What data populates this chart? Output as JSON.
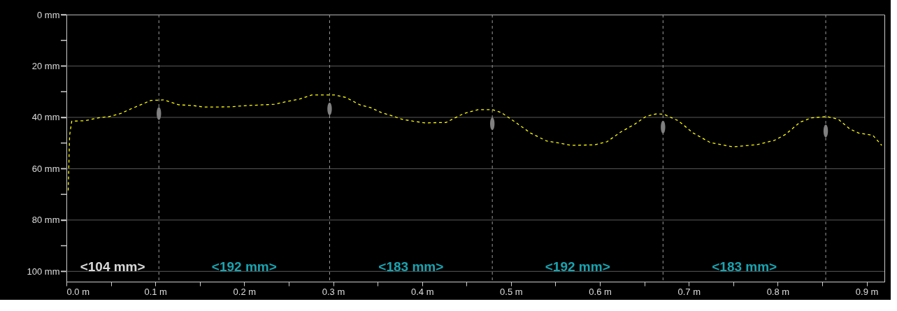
{
  "chart_data": {
    "type": "line",
    "xlim": [
      0,
      0.92
    ],
    "ylim": [
      104,
      0
    ],
    "xticks": [
      {
        "value": 0,
        "label": "0.0 m"
      },
      {
        "value": 0.05,
        "label": null
      },
      {
        "value": 0.1,
        "label": "0.1 m"
      },
      {
        "value": 0.15,
        "label": null
      },
      {
        "value": 0.2,
        "label": "0.2 m"
      },
      {
        "value": 0.25,
        "label": null
      },
      {
        "value": 0.3,
        "label": "0.3 m"
      },
      {
        "value": 0.35,
        "label": null
      },
      {
        "value": 0.4,
        "label": "0.4 m"
      },
      {
        "value": 0.45,
        "label": null
      },
      {
        "value": 0.5,
        "label": "0.5 m"
      },
      {
        "value": 0.55,
        "label": null
      },
      {
        "value": 0.6,
        "label": "0.6 m"
      },
      {
        "value": 0.65,
        "label": null
      },
      {
        "value": 0.7,
        "label": "0.7 m"
      },
      {
        "value": 0.75,
        "label": null
      },
      {
        "value": 0.8,
        "label": "0.8 m"
      },
      {
        "value": 0.85,
        "label": null
      },
      {
        "value": 0.9,
        "label": "0.9 m"
      }
    ],
    "yticks": [
      {
        "value": 0,
        "label": "0 mm"
      },
      {
        "value": 10,
        "label": null
      },
      {
        "value": 20,
        "label": "20 mm"
      },
      {
        "value": 30,
        "label": null
      },
      {
        "value": 40,
        "label": "40 mm"
      },
      {
        "value": 50,
        "label": null
      },
      {
        "value": 60,
        "label": "60 mm"
      },
      {
        "value": 70,
        "label": null
      },
      {
        "value": 80,
        "label": "80 mm"
      },
      {
        "value": 90,
        "label": null
      },
      {
        "value": 100,
        "label": "100 mm"
      }
    ],
    "grid": "y",
    "series": [
      {
        "color": "#ffff00",
        "line_style": "dashed",
        "x": [
          0.002,
          0.0036,
          0.006,
          0.021,
          0.036,
          0.048,
          0.061,
          0.0705,
          0.0836,
          0.095,
          0.11,
          0.126,
          0.142,
          0.155,
          0.185,
          0.198,
          0.234,
          0.247,
          0.263,
          0.276,
          0.302,
          0.314,
          0.33,
          0.342,
          0.354,
          0.368,
          0.377,
          0.39,
          0.404,
          0.411,
          0.427,
          0.437,
          0.447,
          0.463,
          0.479,
          0.489,
          0.505,
          0.522,
          0.54,
          0.554,
          0.568,
          0.594,
          0.608,
          0.623,
          0.639,
          0.652,
          0.664,
          0.672,
          0.688,
          0.705,
          0.724,
          0.75,
          0.777,
          0.796,
          0.809,
          0.825,
          0.838,
          0.855,
          0.868,
          0.881,
          0.891,
          0.907,
          0.917
        ],
        "values": [
          68.5,
          47,
          41.5,
          41.3,
          40.2,
          39.7,
          38.5,
          37.0,
          35.1,
          33.4,
          33.2,
          35.1,
          35.4,
          36.0,
          35.9,
          35.5,
          34.9,
          33.9,
          32.8,
          31.3,
          31.3,
          32.2,
          35.1,
          36.2,
          38.1,
          39.6,
          40.7,
          41.5,
          42.2,
          42.1,
          42.0,
          40.2,
          38.5,
          37.0,
          37.0,
          38.1,
          41.9,
          46.1,
          49.2,
          50.0,
          50.9,
          50.7,
          49.5,
          45.8,
          42.7,
          39.6,
          38.6,
          38.8,
          41.3,
          46.1,
          49.8,
          51.5,
          50.6,
          49.0,
          46.6,
          41.9,
          40.2,
          39.7,
          40.7,
          44.5,
          46.1,
          47.0,
          50.9
        ]
      },
      {
        "type": "scatter",
        "color": "#808080",
        "marker": "circle",
        "x": [
          0.104,
          0.296,
          0.479,
          0.671,
          0.854
        ],
        "values": [
          38.5,
          36.7,
          42.5,
          43.8,
          45.3
        ]
      }
    ],
    "ref_lines": [
      {
        "axis": "x",
        "value": 0.104,
        "color": "#9a9a9a",
        "line_style": "dashed"
      },
      {
        "axis": "x",
        "value": 0.296,
        "color": "#9a9a9a",
        "line_style": "dashed"
      },
      {
        "axis": "x",
        "value": 0.479,
        "color": "#9a9a9a",
        "line_style": "dashed"
      },
      {
        "axis": "x",
        "value": 0.671,
        "color": "#9a9a9a",
        "line_style": "dashed"
      },
      {
        "axis": "x",
        "value": 0.854,
        "color": "#9a9a9a",
        "line_style": "dashed"
      }
    ],
    "annotations": [
      "<104 mm>",
      "<192 mm>",
      "<183 mm>",
      "<192 mm>",
      "<183 mm>"
    ]
  }
}
